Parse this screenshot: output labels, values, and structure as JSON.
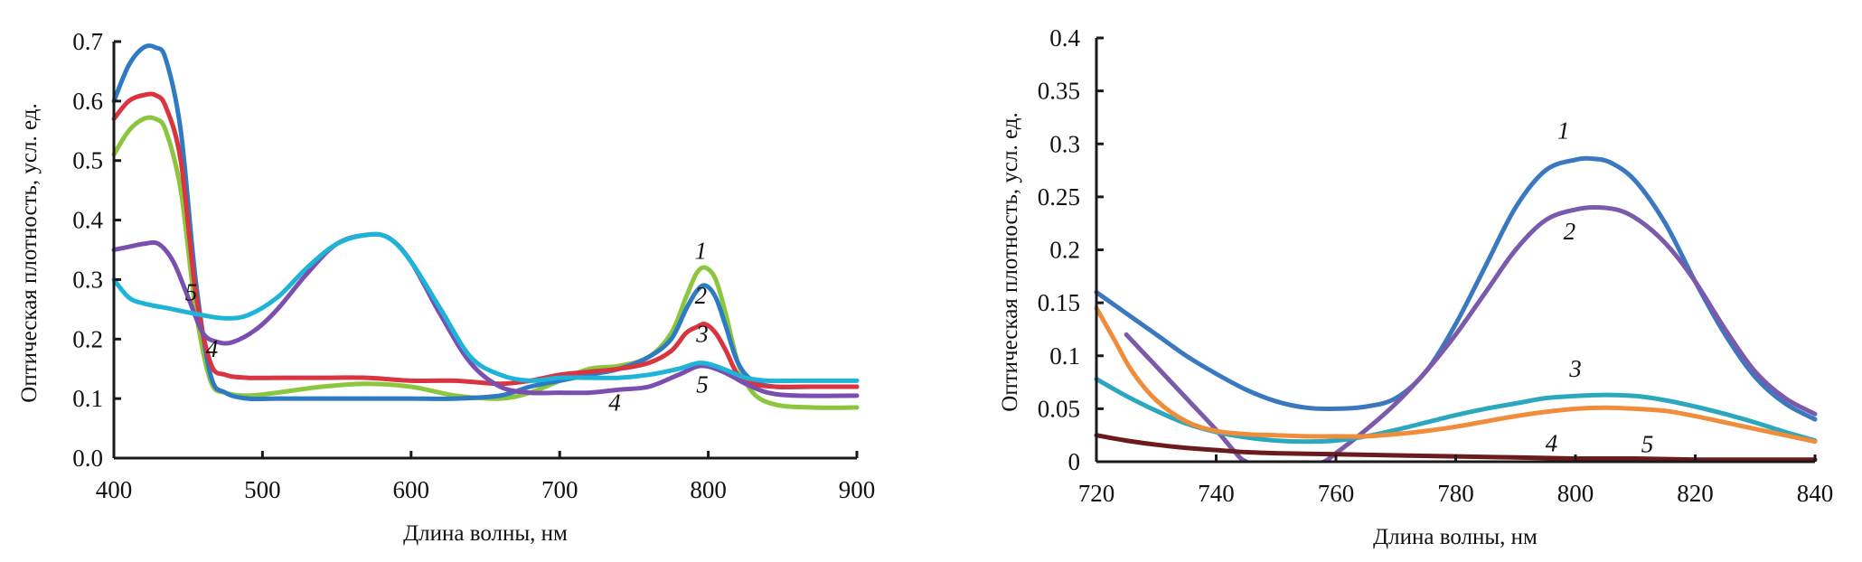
{
  "chart_data": [
    {
      "type": "line",
      "id": "left",
      "title": "",
      "xlabel": "Длина волны, нм",
      "ylabel": "Оптическая плотность, усл. ед.",
      "xlim": [
        400,
        900
      ],
      "ylim": [
        0.0,
        0.7
      ],
      "xticks": [
        400,
        500,
        600,
        700,
        800,
        900
      ],
      "xtick_labels": [
        "400",
        "500",
        "600",
        "700",
        "800",
        "900"
      ],
      "yticks": [
        0.0,
        0.1,
        0.2,
        0.3,
        0.4,
        0.5,
        0.6,
        0.7
      ],
      "ytick_labels": [
        "0.0",
        "0.1",
        "0.2",
        "0.3",
        "0.4",
        "0.5",
        "0.6",
        "0.7"
      ],
      "grid": false,
      "legend": "none",
      "series": [
        {
          "name": "green",
          "color": "#8cc63f",
          "x": [
            400,
            410,
            420,
            428,
            435,
            445,
            455,
            465,
            475,
            490,
            510,
            540,
            570,
            600,
            630,
            660,
            680,
            700,
            720,
            740,
            760,
            775,
            785,
            792,
            798,
            805,
            812,
            820,
            830,
            845,
            870,
            900
          ],
          "y": [
            0.51,
            0.55,
            0.57,
            0.57,
            0.55,
            0.45,
            0.25,
            0.13,
            0.11,
            0.105,
            0.11,
            0.12,
            0.125,
            0.12,
            0.105,
            0.1,
            0.11,
            0.13,
            0.15,
            0.155,
            0.17,
            0.21,
            0.27,
            0.31,
            0.32,
            0.3,
            0.24,
            0.16,
            0.11,
            0.09,
            0.085,
            0.085
          ]
        },
        {
          "name": "blue",
          "color": "#2e7bc4",
          "x": [
            400,
            410,
            420,
            428,
            435,
            445,
            455,
            465,
            475,
            490,
            510,
            540,
            570,
            600,
            630,
            660,
            680,
            700,
            720,
            740,
            760,
            775,
            785,
            792,
            798,
            805,
            812,
            820,
            830,
            845,
            870,
            900
          ],
          "y": [
            0.6,
            0.66,
            0.69,
            0.69,
            0.67,
            0.55,
            0.3,
            0.14,
            0.11,
            0.1,
            0.1,
            0.1,
            0.1,
            0.1,
            0.1,
            0.105,
            0.12,
            0.13,
            0.14,
            0.15,
            0.17,
            0.2,
            0.25,
            0.28,
            0.29,
            0.27,
            0.22,
            0.16,
            0.13,
            0.12,
            0.12,
            0.12
          ]
        },
        {
          "name": "red",
          "color": "#d9343f",
          "x": [
            400,
            410,
            420,
            428,
            435,
            445,
            455,
            465,
            475,
            490,
            510,
            540,
            570,
            600,
            630,
            660,
            680,
            700,
            720,
            740,
            760,
            775,
            785,
            792,
            798,
            805,
            812,
            820,
            830,
            845,
            870,
            900
          ],
          "y": [
            0.57,
            0.6,
            0.61,
            0.61,
            0.59,
            0.5,
            0.28,
            0.16,
            0.14,
            0.135,
            0.135,
            0.135,
            0.135,
            0.13,
            0.13,
            0.125,
            0.13,
            0.14,
            0.145,
            0.15,
            0.16,
            0.18,
            0.21,
            0.22,
            0.225,
            0.21,
            0.18,
            0.14,
            0.125,
            0.12,
            0.12,
            0.12
          ]
        },
        {
          "name": "purple",
          "color": "#7b4fb0",
          "x": [
            400,
            410,
            420,
            430,
            440,
            450,
            460,
            470,
            480,
            495,
            510,
            530,
            550,
            570,
            585,
            600,
            620,
            640,
            660,
            680,
            700,
            720,
            740,
            760,
            780,
            795,
            810,
            825,
            840,
            860,
            900
          ],
          "y": [
            0.35,
            0.355,
            0.36,
            0.36,
            0.33,
            0.27,
            0.21,
            0.195,
            0.195,
            0.215,
            0.25,
            0.31,
            0.36,
            0.375,
            0.37,
            0.33,
            0.24,
            0.16,
            0.12,
            0.11,
            0.11,
            0.11,
            0.115,
            0.12,
            0.14,
            0.155,
            0.145,
            0.125,
            0.11,
            0.105,
            0.105
          ]
        },
        {
          "name": "cyan",
          "color": "#1eb4d8",
          "x": [
            400,
            410,
            420,
            440,
            460,
            475,
            490,
            510,
            530,
            550,
            570,
            585,
            600,
            620,
            640,
            660,
            680,
            700,
            720,
            740,
            760,
            780,
            795,
            810,
            825,
            840,
            860,
            900
          ],
          "y": [
            0.3,
            0.27,
            0.26,
            0.25,
            0.24,
            0.235,
            0.24,
            0.27,
            0.32,
            0.36,
            0.375,
            0.37,
            0.33,
            0.25,
            0.17,
            0.14,
            0.13,
            0.135,
            0.135,
            0.135,
            0.14,
            0.15,
            0.16,
            0.15,
            0.135,
            0.13,
            0.13,
            0.13
          ]
        }
      ],
      "annotations": [
        {
          "text": "1",
          "x": 795,
          "y": 0.335
        },
        {
          "text": "2",
          "x": 795,
          "y": 0.26
        },
        {
          "text": "3",
          "x": 796,
          "y": 0.195
        },
        {
          "text": "5",
          "x": 796,
          "y": 0.11
        },
        {
          "text": "4",
          "x": 737,
          "y": 0.08
        },
        {
          "text": "5",
          "x": 452,
          "y": 0.265
        },
        {
          "text": "4",
          "x": 466,
          "y": 0.17
        }
      ]
    },
    {
      "type": "line",
      "id": "right",
      "title": "",
      "xlabel": "Длина волны, нм",
      "ylabel": "Оптическая плотность, усл. ед.",
      "xlim": [
        720,
        840
      ],
      "ylim": [
        0,
        0.4
      ],
      "xticks": [
        720,
        740,
        760,
        780,
        800,
        820,
        840
      ],
      "xtick_labels": [
        "720",
        "740",
        "760",
        "780",
        "800",
        "820",
        "840"
      ],
      "yticks": [
        0,
        0.05,
        0.1,
        0.15,
        0.2,
        0.25,
        0.3,
        0.35,
        0.4
      ],
      "ytick_labels": [
        "0",
        "0.05",
        "0.1",
        "0.15",
        "0.2",
        "0.25",
        "0.3",
        "0.35",
        "0.4"
      ],
      "grid": false,
      "legend": "none",
      "series": [
        {
          "name": "1",
          "color": "#3a78c0",
          "x": [
            720,
            725,
            730,
            735,
            740,
            745,
            750,
            755,
            760,
            765,
            770,
            775,
            780,
            785,
            790,
            795,
            800,
            803,
            806,
            810,
            815,
            820,
            825,
            830,
            835,
            840
          ],
          "y": [
            0.16,
            0.14,
            0.12,
            0.1,
            0.083,
            0.068,
            0.057,
            0.051,
            0.05,
            0.052,
            0.06,
            0.085,
            0.13,
            0.185,
            0.24,
            0.275,
            0.285,
            0.286,
            0.282,
            0.265,
            0.225,
            0.17,
            0.12,
            0.08,
            0.055,
            0.04
          ]
        },
        {
          "name": "2",
          "color": "#7a5aaa",
          "x": [
            725,
            730,
            735,
            740,
            743,
            745,
            750,
            755,
            758,
            760,
            765,
            770,
            775,
            780,
            785,
            790,
            795,
            800,
            804,
            808,
            812,
            816,
            820,
            825,
            830,
            835,
            840
          ],
          "y": [
            0.12,
            0.09,
            0.06,
            0.03,
            0.01,
            0.0,
            -0.01,
            -0.005,
            0.0,
            0.008,
            0.03,
            0.055,
            0.085,
            0.12,
            0.16,
            0.2,
            0.228,
            0.238,
            0.24,
            0.236,
            0.222,
            0.2,
            0.17,
            0.125,
            0.085,
            0.06,
            0.045
          ]
        },
        {
          "name": "3",
          "color": "#2ba8bd",
          "x": [
            720,
            725,
            730,
            735,
            740,
            745,
            750,
            755,
            760,
            765,
            770,
            775,
            780,
            785,
            790,
            795,
            800,
            805,
            810,
            815,
            820,
            825,
            830,
            835,
            840
          ],
          "y": [
            0.078,
            0.062,
            0.048,
            0.036,
            0.028,
            0.023,
            0.02,
            0.019,
            0.02,
            0.024,
            0.03,
            0.037,
            0.044,
            0.05,
            0.055,
            0.06,
            0.062,
            0.063,
            0.062,
            0.058,
            0.052,
            0.045,
            0.037,
            0.028,
            0.02
          ]
        },
        {
          "name": "4",
          "color": "#f08d3a",
          "x": [
            720,
            723,
            726,
            730,
            735,
            740,
            745,
            750,
            755,
            760,
            765,
            770,
            775,
            780,
            785,
            790,
            795,
            800,
            805,
            810,
            815,
            820,
            825,
            830,
            835,
            840
          ],
          "y": [
            0.145,
            0.115,
            0.085,
            0.058,
            0.038,
            0.029,
            0.026,
            0.025,
            0.024,
            0.024,
            0.024,
            0.026,
            0.029,
            0.033,
            0.038,
            0.043,
            0.047,
            0.05,
            0.051,
            0.05,
            0.048,
            0.043,
            0.037,
            0.031,
            0.025,
            0.019
          ]
        },
        {
          "name": "5",
          "color": "#6b1a1e",
          "x": [
            720,
            725,
            730,
            735,
            740,
            745,
            750,
            760,
            770,
            780,
            790,
            800,
            810,
            820,
            830,
            840
          ],
          "y": [
            0.025,
            0.02,
            0.016,
            0.013,
            0.011,
            0.009,
            0.008,
            0.007,
            0.006,
            0.005,
            0.004,
            0.003,
            0.003,
            0.002,
            0.002,
            0.002
          ]
        }
      ],
      "annotations": [
        {
          "text": "1",
          "x": 798,
          "y": 0.305
        },
        {
          "text": "2",
          "x": 799,
          "y": 0.21
        },
        {
          "text": "3",
          "x": 800,
          "y": 0.08
        },
        {
          "text": "4",
          "x": 796,
          "y": 0.01
        },
        {
          "text": "5",
          "x": 812,
          "y": 0.009
        }
      ]
    }
  ]
}
